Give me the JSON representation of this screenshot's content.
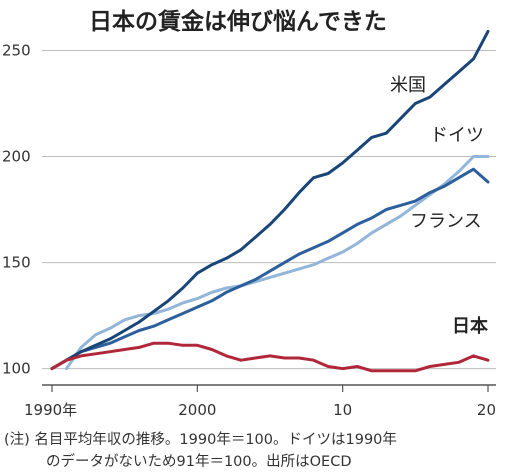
{
  "chart_data": {
    "type": "line",
    "title": "日本の賃金は伸び悩んできた",
    "ylim": [
      97,
      262
    ],
    "xlim": [
      1990,
      2020
    ],
    "yticks": [
      {
        "value": 100,
        "label": "100"
      },
      {
        "value": 150,
        "label": "150"
      },
      {
        "value": 200,
        "label": "200"
      },
      {
        "value": 250,
        "label": "250"
      }
    ],
    "xticks": [
      {
        "value": 1990,
        "label": "1990年"
      },
      {
        "value": 2000,
        "label": "2000"
      },
      {
        "value": 2010,
        "label": "10"
      },
      {
        "value": 2020,
        "label": "20"
      }
    ],
    "grid": true,
    "note_lines": [
      "(注) 名目平均年収の推移。1990年＝100。ドイツは1990年",
      "のデータがないため91年＝100。出所はOECD"
    ],
    "series": [
      {
        "name": "米国",
        "color": "#1a4577",
        "x": [
          1990,
          1991,
          1992,
          1993,
          1994,
          1995,
          1996,
          1997,
          1998,
          1999,
          2000,
          2001,
          2002,
          2003,
          2004,
          2005,
          2006,
          2007,
          2008,
          2009,
          2010,
          2011,
          2012,
          2013,
          2014,
          2015,
          2016,
          2017,
          2018,
          2019,
          2020
        ],
        "values": [
          100,
          104,
          108,
          111,
          114,
          118,
          122,
          127,
          132,
          138,
          145,
          149,
          152,
          156,
          162,
          168,
          175,
          183,
          190,
          192,
          197,
          203,
          209,
          211,
          218,
          225,
          228,
          234,
          240,
          246,
          259
        ]
      },
      {
        "name": "ドイツ",
        "color": "#92b5d9",
        "x": [
          1991,
          1992,
          1993,
          1994,
          1995,
          1996,
          1997,
          1998,
          1999,
          2000,
          2001,
          2002,
          2003,
          2004,
          2005,
          2006,
          2007,
          2008,
          2009,
          2010,
          2011,
          2012,
          2013,
          2014,
          2015,
          2016,
          2017,
          2018,
          2019,
          2020
        ],
        "values": [
          100,
          110,
          116,
          119,
          123,
          125,
          126,
          128,
          131,
          133,
          136,
          138,
          139,
          141,
          143,
          145,
          147,
          149,
          152,
          155,
          159,
          164,
          168,
          172,
          177,
          182,
          187,
          193,
          200,
          200
        ]
      },
      {
        "name": "フランス",
        "color": "#2d5f9c",
        "x": [
          1990,
          1991,
          1992,
          1993,
          1994,
          1995,
          1996,
          1997,
          1998,
          1999,
          2000,
          2001,
          2002,
          2003,
          2004,
          2005,
          2006,
          2007,
          2008,
          2009,
          2010,
          2011,
          2012,
          2013,
          2014,
          2015,
          2016,
          2017,
          2018,
          2019,
          2020
        ],
        "values": [
          100,
          104,
          108,
          110,
          112,
          115,
          118,
          120,
          123,
          126,
          129,
          132,
          136,
          139,
          142,
          146,
          150,
          154,
          157,
          160,
          164,
          168,
          171,
          175,
          177,
          179,
          183,
          186,
          190,
          194,
          188
        ]
      },
      {
        "name": "日本",
        "color": "#b0273a",
        "x": [
          1990,
          1991,
          1992,
          1993,
          1994,
          1995,
          1996,
          1997,
          1998,
          1999,
          2000,
          2001,
          2002,
          2003,
          2004,
          2005,
          2006,
          2007,
          2008,
          2009,
          2010,
          2011,
          2012,
          2013,
          2014,
          2015,
          2016,
          2017,
          2018,
          2019,
          2020
        ],
        "values": [
          100,
          104,
          106,
          107,
          108,
          109,
          110,
          112,
          112,
          111,
          111,
          109,
          106,
          104,
          105,
          106,
          105,
          105,
          104,
          101,
          100,
          101,
          99,
          99,
          99,
          99,
          101,
          102,
          103,
          106,
          104
        ]
      }
    ]
  }
}
